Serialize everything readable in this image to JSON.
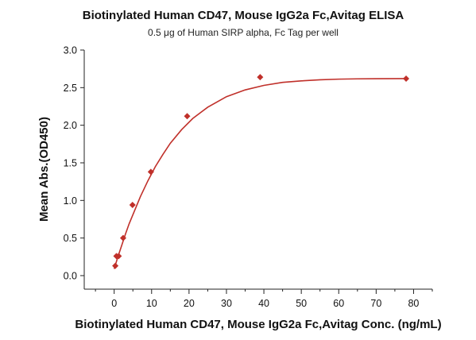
{
  "chart_data": {
    "type": "scatter",
    "title": "Biotinylated Human CD47, Mouse IgG2a Fc,Avitag ELISA",
    "subtitle": "0.5 μg of Human SIRP alpha, Fc Tag per well",
    "xlabel": "Biotinylated Human CD47, Mouse IgG2a Fc,Avitag Conc. (ng/mL)",
    "ylabel": "Mean Abs.(OD450)",
    "xlim": [
      -8,
      85
    ],
    "ylim": [
      -0.18,
      3.0
    ],
    "xticks": [
      0,
      10,
      20,
      30,
      40,
      50,
      60,
      70,
      80
    ],
    "yticks": [
      0.0,
      0.5,
      1.0,
      1.5,
      2.0,
      2.5,
      3.0
    ],
    "xtick_labels": [
      "0",
      "10",
      "20",
      "30",
      "40",
      "50",
      "60",
      "70",
      "80"
    ],
    "ytick_labels": [
      "0.0",
      "0.5",
      "1.0",
      "1.5",
      "2.0",
      "2.5",
      "3.0"
    ],
    "grid": false,
    "marker_color": "#c0302a",
    "line_color": "#c0302a",
    "series": [
      {
        "x": [
          0.3,
          0.6,
          1.2,
          2.4,
          4.9,
          9.8,
          19.5,
          39.0,
          78.0
        ],
        "y": [
          0.13,
          0.26,
          0.26,
          0.5,
          0.94,
          1.38,
          2.12,
          2.64,
          2.62
        ]
      }
    ],
    "fit_curve": {
      "x": [
        0,
        0.5,
        1,
        2,
        3,
        4,
        5,
        7,
        9,
        11,
        13,
        15,
        18,
        21,
        25,
        30,
        35,
        40,
        45,
        50,
        55,
        60,
        65,
        70,
        78
      ],
      "y": [
        0.09,
        0.17,
        0.25,
        0.4,
        0.55,
        0.69,
        0.81,
        1.05,
        1.26,
        1.45,
        1.61,
        1.76,
        1.94,
        2.09,
        2.24,
        2.38,
        2.47,
        2.53,
        2.57,
        2.59,
        2.605,
        2.613,
        2.617,
        2.619,
        2.62
      ]
    }
  }
}
